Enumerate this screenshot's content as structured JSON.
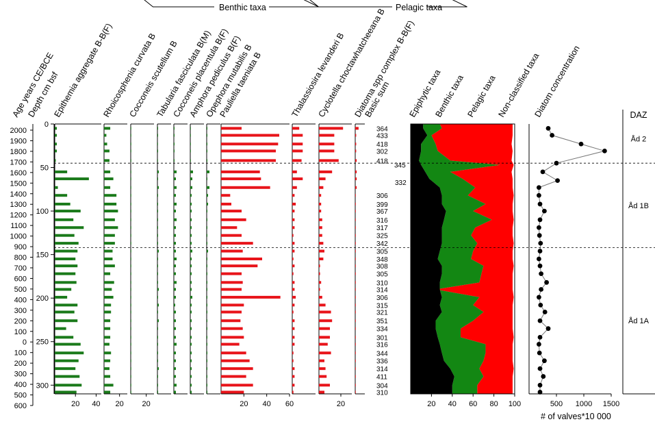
{
  "chart_data": {
    "type": "stratigraphic-diagram",
    "group_labels": {
      "benthic": "Benthic taxa",
      "pelagic": "Pelagic taxa"
    },
    "headers": {
      "age": "Age years CE/BCE",
      "depth": "Depth cm bsf",
      "basic_sum": "Basic sum",
      "daz": "DAZ",
      "epiphytic": "Epiphytic taxa",
      "benthic": "Benthic taxa",
      "pelagic": "Pelagic taxa",
      "nonclassified": "Non-classified taxa",
      "concentration": "Diatom concentration",
      "conc_xlabel": "# of valves*10 000"
    },
    "age_ticks": [
      "2000",
      "1900",
      "1800",
      "1700",
      "1600",
      "1500",
      "1400",
      "1300",
      "1200",
      "1100",
      "1000",
      "900",
      "800",
      "700",
      "600",
      "500",
      "400",
      "300",
      "200",
      "100",
      "0",
      "100",
      "200",
      "300",
      "400",
      "500",
      "600"
    ],
    "depth_ticks": [
      "0",
      "50",
      "100",
      "150",
      "200",
      "250",
      "300"
    ],
    "depth_range": [
      0,
      310
    ],
    "samples": [
      5,
      13,
      23,
      31,
      42,
      55,
      63,
      73,
      82,
      92,
      100,
      110,
      119,
      128,
      137,
      146,
      155,
      163,
      172,
      182,
      190,
      199,
      208,
      216,
      226,
      235,
      245,
      253,
      263,
      272,
      281,
      290,
      300,
      308
    ],
    "basic_sum": [
      "364",
      "433",
      "418",
      "302",
      "418",
      "306",
      "399",
      "367",
      "316",
      "317",
      "325",
      "342",
      "305",
      "348",
      "308",
      "305",
      "310",
      "314",
      "306",
      "315",
      "321",
      "351",
      "334",
      "301",
      "316",
      "344",
      "336",
      "314",
      "411",
      "304",
      "310"
    ],
    "basic_sum_extra": [
      "345",
      "332"
    ],
    "zones": [
      {
        "name": "Åd 2",
        "top": 0,
        "bottom": 45
      },
      {
        "name": "Åd 1B",
        "top": 45,
        "bottom": 142
      },
      {
        "name": "Åd 1A",
        "top": 142,
        "bottom": 310
      }
    ],
    "boundaries": [
      45,
      142
    ],
    "taxa": [
      {
        "name": "Epithemia aggregate B-B(F)",
        "group": "benthic",
        "color": "#1a7a1a",
        "max": 45,
        "ticks": [
          "20",
          "40"
        ],
        "values": [
          2,
          2,
          2,
          2,
          1,
          12,
          33,
          3,
          12,
          15,
          25,
          18,
          28,
          19,
          23,
          22,
          20,
          22,
          20,
          21,
          16,
          12,
          22,
          19,
          22,
          11,
          18,
          25,
          28,
          23,
          20,
          24,
          26,
          21
        ]
      },
      {
        "name": "Rhoicosphenia curvata B",
        "group": "benthic",
        "color": "#1a7a1a",
        "max": 30,
        "ticks": [
          "20"
        ],
        "values": [
          8,
          3,
          4,
          7,
          7,
          8,
          12,
          8,
          16,
          16,
          18,
          14,
          18,
          14,
          14,
          11,
          11,
          14,
          8,
          13,
          10,
          12,
          9,
          9,
          8,
          8,
          8,
          7,
          9,
          8,
          7,
          8,
          12,
          8
        ]
      },
      {
        "name": "Cocconeis scutellum B",
        "group": "benthic",
        "color": "#1a7a1a",
        "max": 30,
        "ticks": [
          "20"
        ],
        "values": [
          0,
          0,
          0,
          0,
          0,
          0,
          0,
          0,
          0,
          0,
          0,
          0,
          0,
          0,
          0,
          0,
          0,
          0,
          0,
          0,
          0,
          0,
          0,
          0,
          0,
          0,
          0,
          0,
          0,
          0,
          0,
          0,
          0,
          0
        ]
      },
      {
        "name": "Tabularia fasciculata B(M)",
        "group": "benthic",
        "color": "#1a7a1a",
        "max": 20,
        "ticks": [],
        "values": [
          1,
          1,
          0,
          1,
          0,
          2,
          1,
          2,
          1,
          1,
          1,
          1,
          1,
          1,
          1,
          2,
          1,
          1,
          1,
          1,
          2,
          1,
          2,
          1,
          2,
          1,
          1,
          1,
          1,
          1,
          2,
          1,
          1,
          1
        ]
      },
      {
        "name": "Cocconeis placentula B(F)",
        "group": "benthic",
        "color": "#1a7a1a",
        "max": 20,
        "ticks": [],
        "values": [
          1,
          1,
          1,
          1,
          1,
          4,
          3,
          4,
          3,
          4,
          3,
          4,
          3,
          3,
          3,
          3,
          4,
          3,
          3,
          4,
          3,
          3,
          2,
          3,
          3,
          3,
          3,
          4,
          3,
          3,
          3,
          3,
          4,
          3
        ]
      },
      {
        "name": "Amphora pediculus B(F)",
        "group": "benthic",
        "color": "#1a7a1a",
        "max": 20,
        "ticks": [],
        "values": [
          0,
          0,
          0,
          0,
          0,
          4,
          3,
          3,
          2,
          2,
          2,
          2,
          2,
          2,
          2,
          3,
          2,
          2,
          2,
          2,
          2,
          3,
          2,
          2,
          2,
          2,
          2,
          2,
          2,
          2,
          2,
          2,
          2,
          2
        ]
      },
      {
        "name": "Opephora mutabilis B",
        "group": "benthic",
        "color": "#1a7a1a",
        "max": 20,
        "ticks": [],
        "values": [
          1,
          1,
          1,
          1,
          1,
          4,
          1,
          4,
          2,
          2,
          1,
          1,
          1,
          1,
          1,
          2,
          1,
          1,
          1,
          1,
          1,
          1,
          1,
          1,
          1,
          1,
          1,
          1,
          1,
          1,
          1,
          1,
          1,
          1
        ]
      },
      {
        "name": "Pauliella taeniata B",
        "group": "pelagic",
        "color": "#e8141a",
        "max": 60,
        "ticks": [
          "20",
          "40",
          "60"
        ],
        "values": [
          18,
          51,
          50,
          48,
          48,
          34,
          35,
          43,
          8,
          9,
          18,
          22,
          14,
          18,
          28,
          19,
          36,
          32,
          18,
          19,
          18,
          52,
          20,
          18,
          17,
          19,
          20,
          16,
          22,
          25,
          28,
          22,
          28,
          20
        ]
      },
      {
        "name": "Thalassiosira levanderi B",
        "group": "pelagic",
        "color": "#e8141a",
        "max": 20,
        "ticks": [],
        "values": [
          6,
          9,
          9,
          9,
          8,
          4,
          9,
          4,
          2,
          3,
          2,
          2,
          2,
          1,
          2,
          2,
          1,
          2,
          1,
          2,
          2,
          3,
          2,
          1,
          2,
          2,
          2,
          2,
          1,
          1,
          2,
          2,
          2,
          1
        ]
      },
      {
        "name": "Cyclotella choctawhatcheeana B",
        "group": "pelagic",
        "color": "#e8141a",
        "max": 30,
        "ticks": [
          "20"
        ],
        "values": [
          22,
          14,
          14,
          14,
          18,
          12,
          6,
          4,
          2,
          2,
          2,
          3,
          3,
          3,
          4,
          5,
          4,
          1,
          1,
          2,
          1,
          3,
          6,
          11,
          12,
          10,
          10,
          8,
          11,
          5,
          6,
          7,
          10,
          5
        ]
      },
      {
        "name": "Diatoma spp complex B-B(F)",
        "group": "pelagic",
        "color": "#e8141a",
        "max": 20,
        "ticks": [],
        "values": [
          7,
          2,
          2,
          2,
          3,
          3,
          3,
          3,
          1,
          1,
          1,
          1,
          1,
          1,
          1,
          1,
          1,
          1,
          1,
          1,
          1,
          1,
          1,
          1,
          1,
          1,
          1,
          1,
          1,
          1,
          1,
          1,
          1,
          1
        ]
      }
    ],
    "cumulative": {
      "depths": [
        0,
        5,
        13,
        23,
        31,
        42,
        47,
        55,
        63,
        73,
        82,
        92,
        100,
        110,
        119,
        128,
        137,
        146,
        155,
        163,
        172,
        182,
        190,
        199,
        208,
        216,
        226,
        235,
        245,
        253,
        263,
        272,
        281,
        290,
        300,
        310
      ],
      "epiphytic": [
        12,
        12,
        16,
        10,
        10,
        8,
        10,
        14,
        18,
        28,
        30,
        30,
        34,
        32,
        30,
        30,
        30,
        28,
        26,
        30,
        30,
        28,
        28,
        30,
        28,
        30,
        24,
        24,
        26,
        28,
        30,
        32,
        38,
        42,
        40,
        40
      ],
      "benthic": [
        28,
        30,
        20,
        24,
        26,
        38,
        86,
        38,
        50,
        62,
        55,
        72,
        60,
        78,
        62,
        58,
        64,
        60,
        58,
        70,
        68,
        66,
        24,
        66,
        60,
        70,
        60,
        48,
        48,
        72,
        72,
        70,
        66,
        70,
        64,
        64
      ],
      "pelagic": [
        98,
        98,
        98,
        97,
        98,
        97,
        99,
        97,
        98,
        98,
        99,
        98,
        98,
        99,
        98,
        98,
        99,
        98,
        98,
        99,
        98,
        98,
        98,
        99,
        98,
        98,
        98,
        98,
        99,
        98,
        98,
        98,
        99,
        98,
        98,
        98
      ],
      "ticks": [
        "20",
        "40",
        "60",
        "80",
        "100"
      ]
    },
    "concentration": {
      "depths": [
        5,
        13,
        23,
        31,
        45,
        55,
        65,
        73,
        82,
        92,
        100,
        110,
        119,
        128,
        137,
        146,
        155,
        163,
        172,
        182,
        190,
        199,
        208,
        216,
        226,
        235,
        245,
        253,
        263,
        272,
        281,
        290,
        300,
        308
      ],
      "values": [
        350,
        420,
        950,
        1380,
        500,
        250,
        520,
        180,
        180,
        200,
        280,
        200,
        180,
        190,
        210,
        200,
        180,
        200,
        220,
        320,
        220,
        180,
        210,
        290,
        200,
        350,
        200,
        180,
        190,
        280,
        200,
        260,
        200,
        200
      ],
      "ticks": [
        "500",
        "1000",
        "1500"
      ],
      "max": 1500
    }
  }
}
